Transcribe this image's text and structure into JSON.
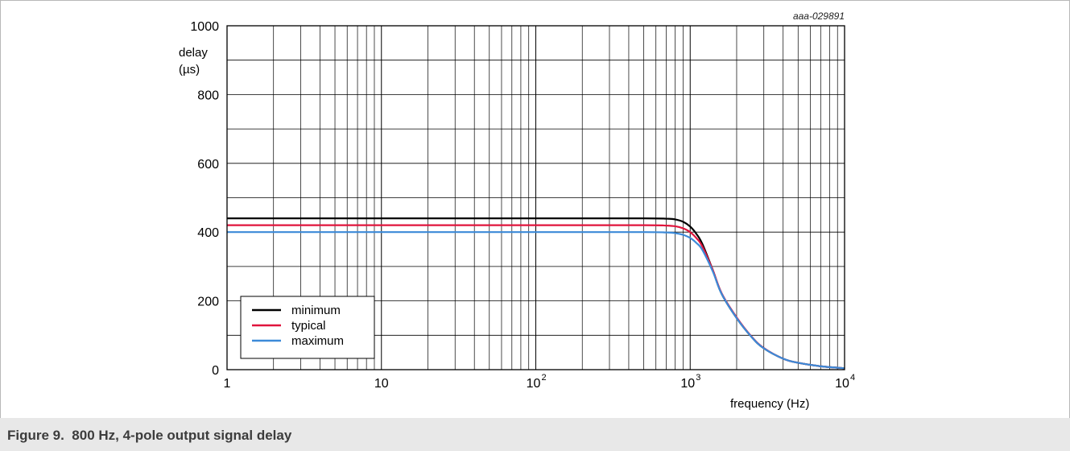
{
  "figure_code": "aaa-029891",
  "caption": "Figure 9.  800 Hz, 4-pole output signal delay",
  "chart_data": {
    "type": "line",
    "title": "",
    "xlabel": "frequency (Hz)",
    "ylabel_lines": [
      "delay",
      "(µs)"
    ],
    "x_scale": "log",
    "xlim": [
      1,
      10000
    ],
    "ylim": [
      0,
      1000
    ],
    "grid": true,
    "legend_position": "bottom-left",
    "x_ticks": [
      {
        "value": 1,
        "base": "1",
        "exp": ""
      },
      {
        "value": 10,
        "base": "10",
        "exp": ""
      },
      {
        "value": 100,
        "base": "10",
        "exp": "2"
      },
      {
        "value": 1000,
        "base": "10",
        "exp": "3"
      },
      {
        "value": 10000,
        "base": "10",
        "exp": "4"
      }
    ],
    "y_ticks": [
      0,
      200,
      400,
      600,
      800,
      1000
    ],
    "x": [
      1,
      100,
      500,
      700,
      800,
      900,
      1000,
      1100,
      1200,
      1400,
      1600,
      2000,
      2500,
      3000,
      4000,
      5000,
      7000,
      10000
    ],
    "series": [
      {
        "name": "minimum",
        "color": "#000000",
        "values": [
          440,
          440,
          440,
          439,
          437,
          430,
          416,
          394,
          365,
          290,
          220,
          150,
          95,
          62,
          32,
          20,
          10,
          4
        ]
      },
      {
        "name": "typical",
        "color": "#e0143c",
        "values": [
          420,
          420,
          420,
          419,
          417,
          411,
          400,
          382,
          358,
          290,
          222,
          152,
          96,
          63,
          32,
          20,
          10,
          4
        ]
      },
      {
        "name": "maximum",
        "color": "#3c8ad8",
        "values": [
          400,
          400,
          400,
          399,
          397,
          392,
          383,
          368,
          348,
          286,
          220,
          150,
          95,
          62,
          32,
          20,
          10,
          4
        ]
      }
    ]
  }
}
